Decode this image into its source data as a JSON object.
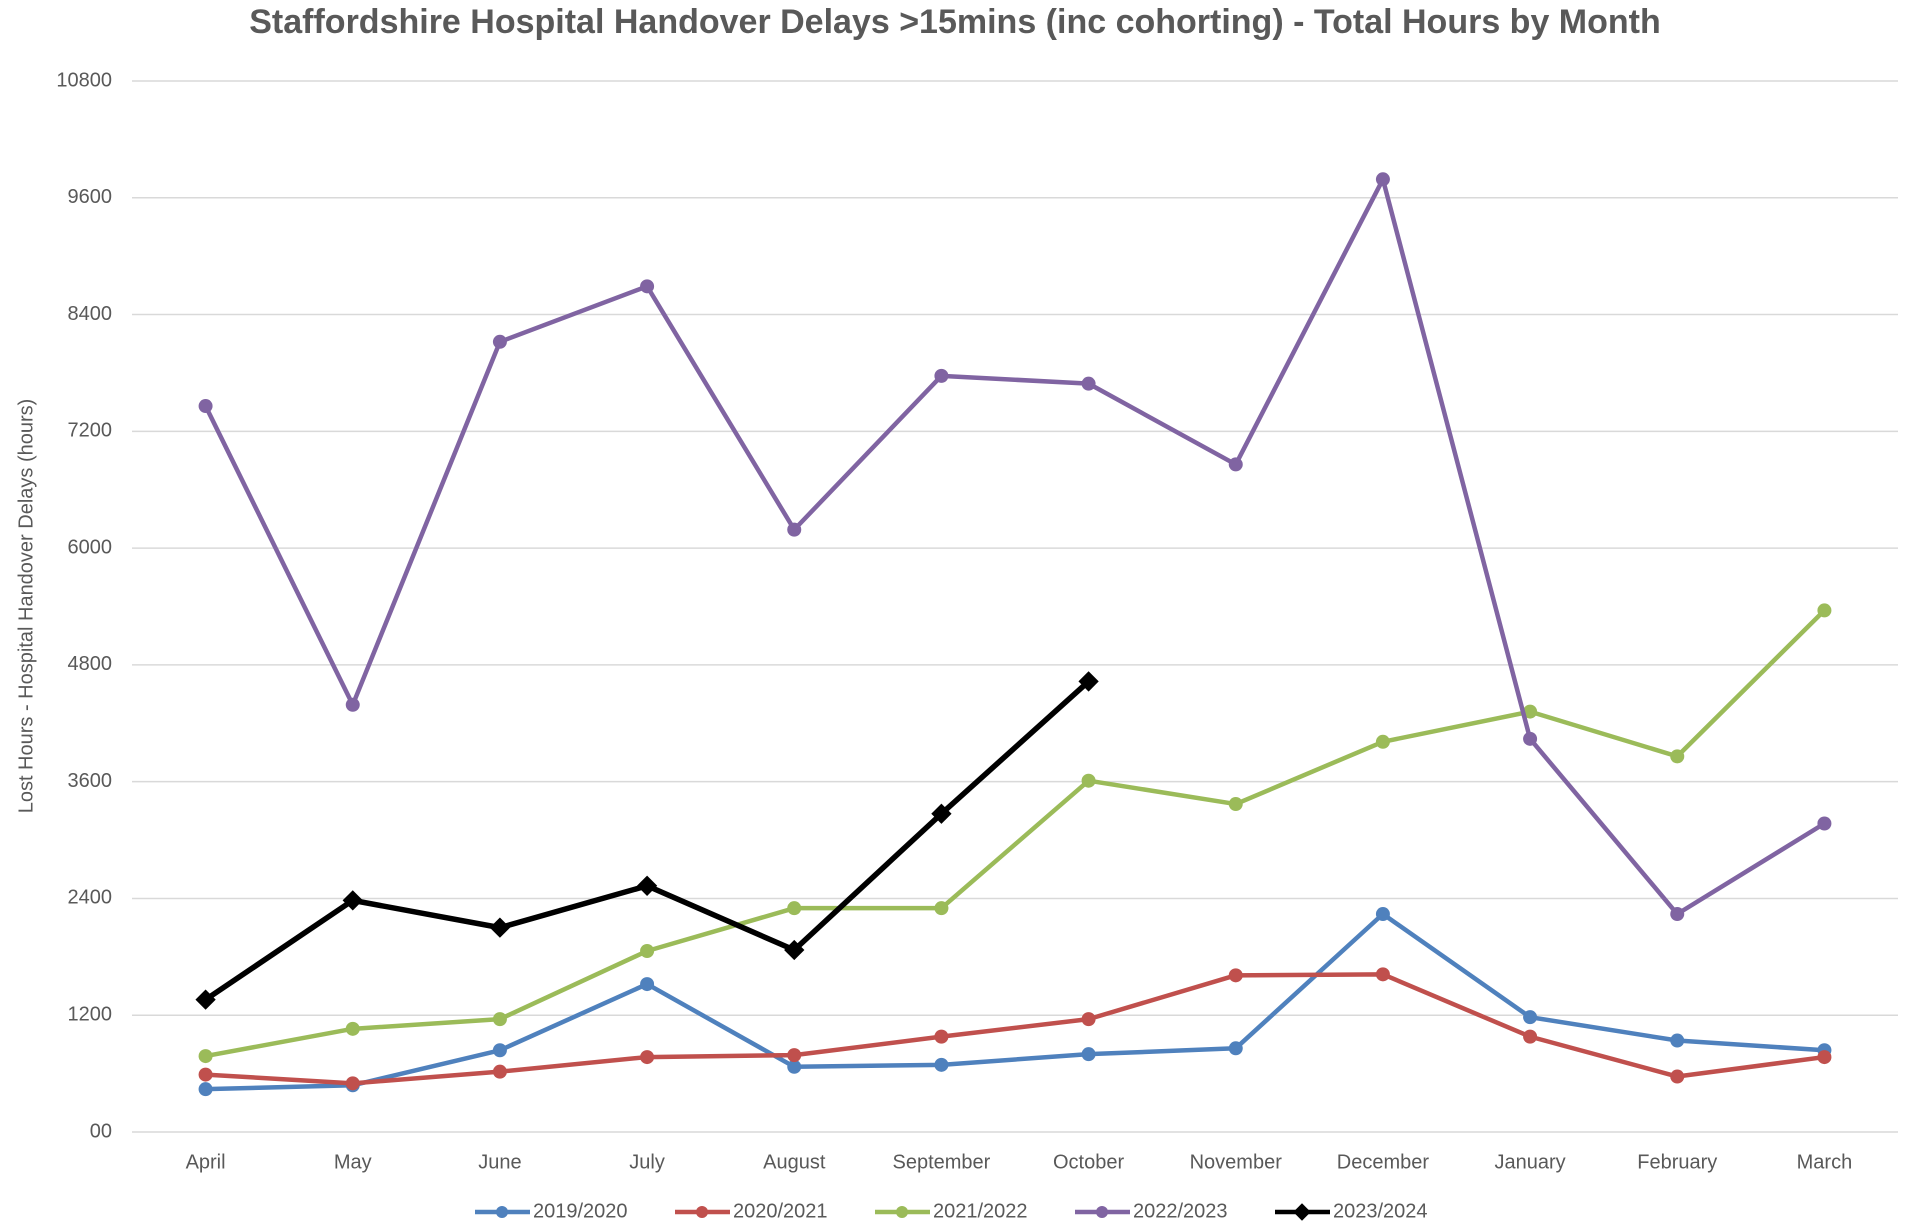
{
  "chart_data": {
    "type": "line",
    "title": "Staffordshire Hospital Handover Delays >15mins (inc cohorting) - Total Hours by Month",
    "y_label": "Lost Hours - Hospital Handover Delays (hours)",
    "categories": [
      "April",
      "May",
      "June",
      "July",
      "August",
      "September",
      "October",
      "November",
      "December",
      "January",
      "February",
      "March"
    ],
    "series": [
      {
        "name": "2019/2020",
        "color": "#4f81bd",
        "marker": "circle",
        "values": [
          440,
          480,
          840,
          1520,
          670,
          690,
          800,
          860,
          2240,
          1180,
          940,
          840
        ]
      },
      {
        "name": "2020/2021",
        "color": "#c0504d",
        "marker": "circle",
        "values": [
          590,
          500,
          620,
          770,
          790,
          980,
          1160,
          1610,
          1620,
          980,
          570,
          770
        ]
      },
      {
        "name": "2021/2022",
        "color": "#9bbb59",
        "marker": "circle",
        "values": [
          780,
          1060,
          1160,
          1860,
          2300,
          2300,
          3610,
          3370,
          4010,
          4320,
          3860,
          5360
        ]
      },
      {
        "name": "2022/2023",
        "color": "#8064a2",
        "marker": "circle",
        "values": [
          7460,
          4390,
          8120,
          8690,
          6190,
          7770,
          7690,
          6860,
          9790,
          4040,
          2240,
          3170
        ]
      },
      {
        "name": "2023/2024",
        "color": "#000000",
        "marker": "diamond",
        "values": [
          1360,
          2380,
          2100,
          2530,
          1870,
          3270,
          4630,
          null,
          null,
          null,
          null,
          null
        ]
      }
    ],
    "ylim": [
      0,
      10800
    ],
    "yticks": [
      {
        "value": 0,
        "label": "00"
      },
      1200,
      2400,
      3600,
      4800,
      6000,
      7200,
      8400,
      9600,
      10800
    ],
    "grid": true,
    "legend": "bottom"
  }
}
